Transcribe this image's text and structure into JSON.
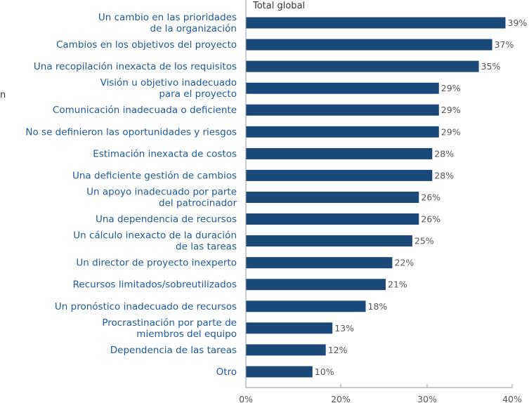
{
  "edge_fragment": "n",
  "chart_data": {
    "type": "bar",
    "orientation": "horizontal",
    "series": [
      {
        "name": "Total global",
        "values": [
          39,
          37,
          35,
          29,
          29,
          29,
          28,
          28,
          26,
          26,
          25,
          22,
          21,
          18,
          13,
          12,
          10
        ]
      }
    ],
    "categories": [
      [
        "Un cambio en las prioridades",
        "de la organización"
      ],
      [
        "Cambios en los objetivos del proyecto"
      ],
      [
        "Una recopilación inexacta de los requisitos"
      ],
      [
        "Visión u objetivo inadecuado",
        "para el proyecto"
      ],
      [
        "Comunicación inadecuada o deficiente"
      ],
      [
        "No se definieron las oportunidades y riesgos"
      ],
      [
        "Estimación inexacta de costos"
      ],
      [
        "Una deficiente gestión de cambios"
      ],
      [
        "Un apoyo inadecuado por parte",
        "del patrocinador"
      ],
      [
        "Una dependencia de recursos"
      ],
      [
        "Un cálculo inexacto de la duración",
        "de las tareas"
      ],
      [
        "Un director de proyecto inexperto"
      ],
      [
        "Recursos limitados/sobreutilizados"
      ],
      [
        "Un pronóstico inadecuado de recursos"
      ],
      [
        "Procrastinación por parte de",
        "miembros del equipo"
      ],
      [
        "Dependencia de las tareas"
      ],
      [
        "Otro"
      ]
    ],
    "value_labels": [
      "39%",
      "37%",
      "35%",
      "29%",
      "29%",
      "29%",
      "28%",
      "28%",
      "26%",
      "26%",
      "25%",
      "22%",
      "21%",
      "18%",
      "13%",
      "12%",
      "10%"
    ],
    "xlim": [
      0,
      40
    ],
    "xticks": [
      0,
      20,
      30,
      40
    ],
    "xtick_labels": [
      "0%",
      "20%",
      "30%",
      "40%"
    ],
    "legend_placement": "top-left",
    "grid": false,
    "colors": {
      "bar": "#1b4a7a",
      "axis": "#999999",
      "category_text": "#1f5a96"
    }
  }
}
